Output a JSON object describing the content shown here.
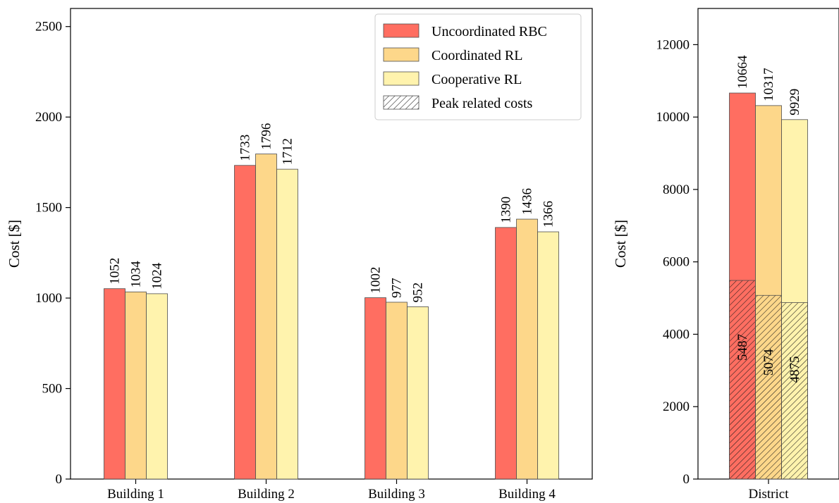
{
  "chart_data": [
    {
      "type": "bar",
      "categories": [
        "Building 1",
        "Building 2",
        "Building 3",
        "Building 4"
      ],
      "series": [
        {
          "name": "Uncoordinated RBC",
          "values": [
            1052,
            1733,
            1002,
            1390
          ],
          "color": "#ff6e61"
        },
        {
          "name": "Coordinated RL",
          "values": [
            1034,
            1796,
            977,
            1436
          ],
          "color": "#fdd78a"
        },
        {
          "name": "Cooperative RL",
          "values": [
            1024,
            1712,
            952,
            1366
          ],
          "color": "#fff3ad"
        }
      ],
      "ylabel": "Cost [$]",
      "ylim": [
        0,
        2600
      ],
      "yticks": [
        0,
        500,
        1000,
        1500,
        2000,
        2500
      ],
      "legend": {
        "position": "top-right",
        "entries": [
          "Uncoordinated RBC",
          "Coordinated RL",
          "Cooperative RL",
          "Peak related costs"
        ],
        "hatch_entry": "Peak related costs"
      }
    },
    {
      "type": "bar",
      "categories": [
        "District"
      ],
      "series": [
        {
          "name": "Uncoordinated RBC",
          "values": [
            10664
          ],
          "peak_values": [
            5487
          ],
          "color": "#ff6e61"
        },
        {
          "name": "Coordinated RL",
          "values": [
            10317
          ],
          "peak_values": [
            5074
          ],
          "color": "#fdd78a"
        },
        {
          "name": "Cooperative RL",
          "values": [
            9929
          ],
          "peak_values": [
            4875
          ],
          "color": "#fff3ad"
        }
      ],
      "ylabel": "Cost [$]",
      "ylim": [
        0,
        13000
      ],
      "yticks": [
        0,
        2000,
        4000,
        6000,
        8000,
        10000,
        12000
      ],
      "peak_hatch": true
    }
  ]
}
